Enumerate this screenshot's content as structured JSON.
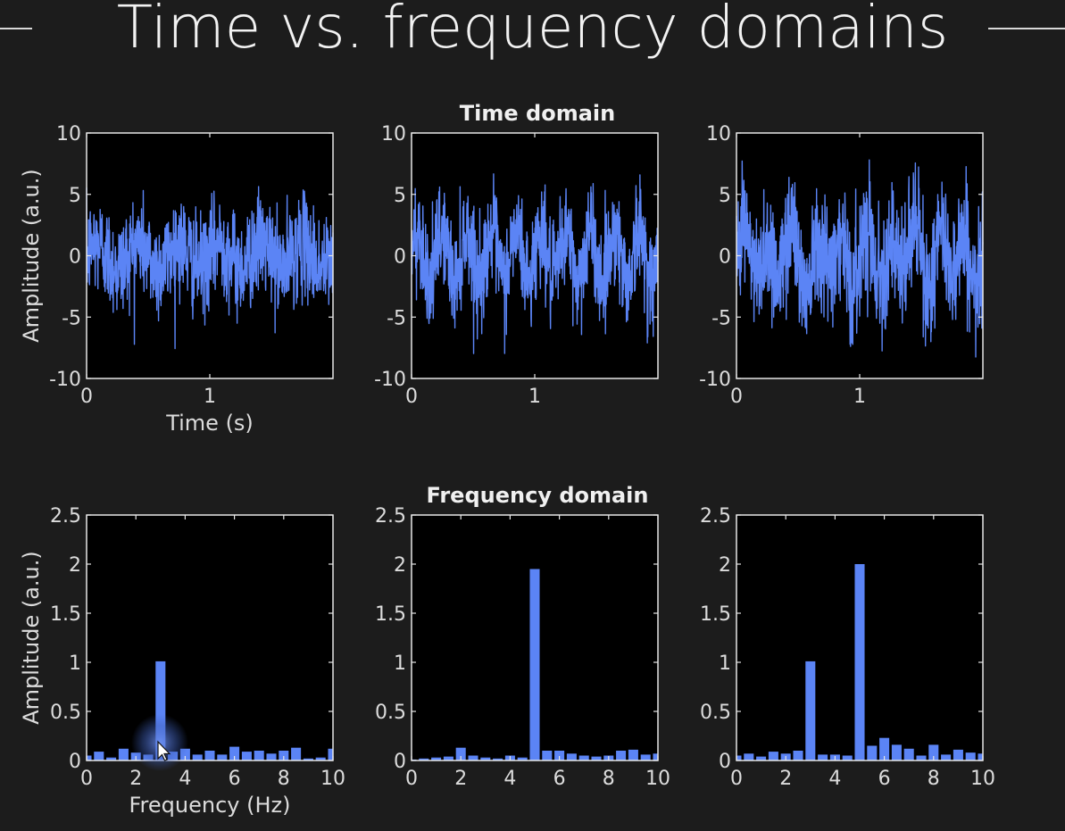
{
  "slide": {
    "title": "Time vs. frequency domains"
  },
  "colors": {
    "background": "#1c1c1c",
    "plot_background": "#000000",
    "series": "#5b84f5",
    "axes": "#e6e6e6"
  },
  "chart_data": [
    {
      "type": "line",
      "panel": "time-1",
      "title": "Time domain",
      "xlabel": "Time (s)",
      "ylabel": "Amplitude (a.u.)",
      "xlim": [
        0,
        2
      ],
      "ylim": [
        -10,
        10
      ],
      "xticks": [
        0,
        1
      ],
      "yticks": [
        -10,
        -5,
        0,
        5,
        10
      ],
      "fs": 500,
      "components": [
        {
          "freq_hz": 3,
          "amp": 1
        }
      ],
      "noise_std": 2,
      "observed_range": [
        -8.2,
        6.2
      ]
    },
    {
      "type": "line",
      "panel": "time-2",
      "xlabel": "",
      "ylabel": "",
      "xlim": [
        0,
        2
      ],
      "ylim": [
        -10,
        10
      ],
      "xticks": [
        0,
        1
      ],
      "yticks": [
        -10,
        -5,
        0,
        5,
        10
      ],
      "fs": 500,
      "components": [
        {
          "freq_hz": 5,
          "amp": 2
        }
      ],
      "noise_std": 2,
      "observed_range": [
        -8.8,
        7.0
      ]
    },
    {
      "type": "line",
      "panel": "time-3",
      "xlabel": "",
      "ylabel": "",
      "xlim": [
        0,
        2
      ],
      "ylim": [
        -10,
        10
      ],
      "xticks": [
        0,
        1
      ],
      "yticks": [
        -10,
        -5,
        0,
        5,
        10
      ],
      "fs": 500,
      "components": [
        {
          "freq_hz": 3,
          "amp": 1
        },
        {
          "freq_hz": 5,
          "amp": 2
        }
      ],
      "noise_std": 2.4,
      "observed_range": [
        -9.9,
        10.0
      ]
    },
    {
      "type": "bar",
      "panel": "freq-1",
      "title": "Frequency domain",
      "xlabel": "Frequency (Hz)",
      "ylabel": "Amplitude (a.u.)",
      "xlim": [
        0,
        10
      ],
      "ylim": [
        0,
        2.5
      ],
      "xticks": [
        0,
        2,
        4,
        6,
        8,
        10
      ],
      "yticks": [
        0,
        0.5,
        1,
        1.5,
        2,
        2.5
      ],
      "x": [
        0,
        0.5,
        1,
        1.5,
        2,
        2.5,
        3,
        3.5,
        4,
        4.5,
        5,
        5.5,
        6,
        6.5,
        7,
        7.5,
        8,
        8.5,
        9,
        9.5,
        10
      ],
      "values": [
        0.05,
        0.09,
        0.03,
        0.12,
        0.08,
        0.06,
        1.01,
        0.09,
        0.12,
        0.06,
        0.1,
        0.06,
        0.14,
        0.09,
        0.1,
        0.07,
        0.1,
        0.13,
        0.02,
        0.03,
        0.12
      ]
    },
    {
      "type": "bar",
      "panel": "freq-2",
      "xlabel": "",
      "ylabel": "",
      "xlim": [
        0,
        10
      ],
      "ylim": [
        0,
        2.5
      ],
      "xticks": [
        0,
        2,
        4,
        6,
        8,
        10
      ],
      "yticks": [
        0,
        0.5,
        1,
        1.5,
        2,
        2.5
      ],
      "x": [
        0,
        0.5,
        1,
        1.5,
        2,
        2.5,
        3,
        3.5,
        4,
        4.5,
        5,
        5.5,
        6,
        6.5,
        7,
        7.5,
        8,
        8.5,
        9,
        9.5,
        10
      ],
      "values": [
        0.01,
        0.02,
        0.03,
        0.04,
        0.13,
        0.05,
        0.03,
        0.02,
        0.05,
        0.03,
        1.95,
        0.1,
        0.1,
        0.07,
        0.05,
        0.04,
        0.05,
        0.1,
        0.11,
        0.06,
        0.07
      ]
    },
    {
      "type": "bar",
      "panel": "freq-3",
      "xlabel": "",
      "ylabel": "",
      "xlim": [
        0,
        10
      ],
      "ylim": [
        0,
        2.5
      ],
      "xticks": [
        0,
        2,
        4,
        6,
        8,
        10
      ],
      "yticks": [
        0,
        0.5,
        1,
        1.5,
        2,
        2.5
      ],
      "x": [
        0,
        0.5,
        1,
        1.5,
        2,
        2.5,
        3,
        3.5,
        4,
        4.5,
        5,
        5.5,
        6,
        6.5,
        7,
        7.5,
        8,
        8.5,
        9,
        9.5,
        10
      ],
      "values": [
        0.05,
        0.07,
        0.04,
        0.09,
        0.07,
        0.1,
        1.01,
        0.06,
        0.06,
        0.05,
        2.0,
        0.15,
        0.23,
        0.16,
        0.12,
        0.05,
        0.16,
        0.06,
        0.11,
        0.08,
        0.07
      ]
    }
  ]
}
